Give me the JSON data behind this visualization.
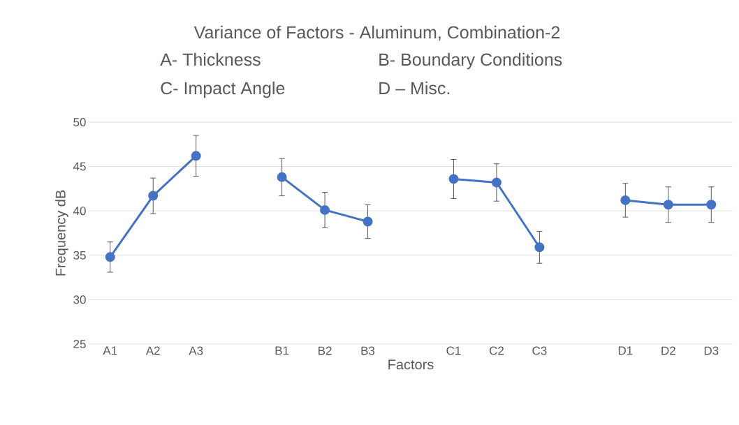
{
  "chart_data": {
    "type": "line",
    "title": "Variance of Factors - Aluminum, Combination-2",
    "annotations": [
      "A- Thickness",
      "B- Boundary Conditions",
      "C- Impact Angle",
      "D – Misc."
    ],
    "xlabel": "Factors",
    "ylabel": "Frequency dB",
    "categories": [
      "A1",
      "A2",
      "A3",
      null,
      "B1",
      "B2",
      "B3",
      null,
      "C1",
      "C2",
      "C3",
      null,
      "D1",
      "D2",
      "D3"
    ],
    "series": [
      {
        "color": "#4472c4",
        "values": [
          34.8,
          41.7,
          46.2,
          null,
          43.8,
          40.1,
          38.8,
          null,
          43.6,
          43.2,
          35.9,
          null,
          41.2,
          40.7,
          40.7
        ],
        "errors": [
          1.7,
          2.0,
          2.3,
          null,
          2.1,
          2.0,
          1.9,
          null,
          2.2,
          2.1,
          1.8,
          null,
          1.9,
          2.0,
          2.0
        ]
      }
    ],
    "ylim": [
      25,
      50
    ],
    "yticks": [
      25,
      30,
      35,
      40,
      45,
      50
    ],
    "grid": "y",
    "marker": "circle",
    "line_style": "solid",
    "legend": false
  }
}
